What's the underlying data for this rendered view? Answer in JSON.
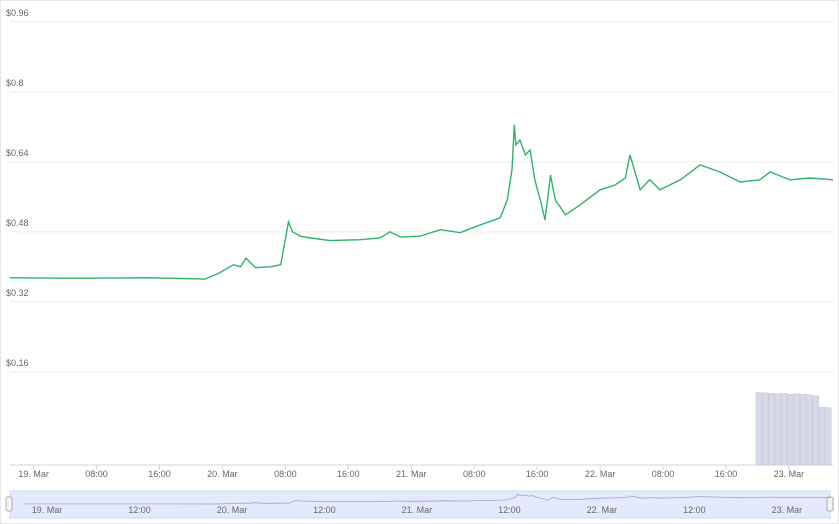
{
  "chart_data": {
    "type": "line",
    "series": [
      {
        "color": "#2fb36a",
        "x": [
          -3,
          5,
          15,
          21.8,
          23.5,
          25.4,
          26.3,
          27,
          28.2,
          30.1,
          31.4,
          32.4,
          32.9,
          33.9,
          35.2,
          37.7,
          41.5,
          44,
          45.3,
          46.6,
          49.1,
          51.7,
          54.2,
          56.8,
          59.3,
          60.2,
          60.8,
          61.1,
          61.3,
          61.8,
          62.5,
          63.1,
          63.7,
          64.4,
          65,
          65.7,
          66.3,
          67.6,
          69.5,
          72,
          73.9,
          75.2,
          75.8,
          77.1,
          78.3,
          79.6,
          82.2,
          84.7,
          87.2,
          89.8,
          92.3,
          93.6,
          96.1,
          98.7,
          101.6
        ],
        "values": [
          0.375,
          0.374,
          0.375,
          0.372,
          0.385,
          0.405,
          0.4,
          0.42,
          0.398,
          0.4,
          0.405,
          0.503,
          0.48,
          0.47,
          0.466,
          0.46,
          0.462,
          0.466,
          0.48,
          0.468,
          0.47,
          0.485,
          0.478,
          0.496,
          0.512,
          0.553,
          0.622,
          0.725,
          0.679,
          0.69,
          0.656,
          0.667,
          0.599,
          0.553,
          0.507,
          0.61,
          0.553,
          0.519,
          0.542,
          0.576,
          0.587,
          0.603,
          0.656,
          0.576,
          0.599,
          0.576,
          0.599,
          0.633,
          0.617,
          0.594,
          0.599,
          0.617,
          0.599,
          0.603,
          0.599
        ]
      },
      {
        "axis": "y2",
        "color": "#d5d9e8",
        "x": [
          92.2,
          93,
          93.8,
          94.6,
          95.4,
          96.2,
          97,
          97.8,
          98.6,
          99.4,
          100.2,
          101
        ],
        "values": [
          15.6,
          15.5,
          15.4,
          15.3,
          15.4,
          15.2,
          15.3,
          15.2,
          15.1,
          14.9,
          12.4,
          12.3
        ]
      }
    ],
    "xlim": [
      -3,
      101.6
    ],
    "xticks": [
      {
        "value": 0,
        "label": "19. Mar"
      },
      {
        "value": 8,
        "label": "08:00"
      },
      {
        "value": 16,
        "label": "16:00"
      },
      {
        "value": 24,
        "label": "20. Mar"
      },
      {
        "value": 32,
        "label": "08:00"
      },
      {
        "value": 40,
        "label": "16:00"
      },
      {
        "value": 48,
        "label": "21. Mar"
      },
      {
        "value": 56,
        "label": "08:00"
      },
      {
        "value": 64,
        "label": "16:00"
      },
      {
        "value": 72,
        "label": "22. Mar"
      },
      {
        "value": 80,
        "label": "08:00"
      },
      {
        "value": 88,
        "label": "16:00"
      },
      {
        "value": 96,
        "label": "23. Mar"
      }
    ],
    "ylim": [
      -0.053,
      1.01
    ],
    "yticks": [
      {
        "value": 0.16,
        "label": "$0.16"
      },
      {
        "value": 0.32,
        "label": "$0.32"
      },
      {
        "value": 0.48,
        "label": "$0.48"
      },
      {
        "value": 0.64,
        "label": "$0.64"
      },
      {
        "value": 0.8,
        "label": "$0.8"
      },
      {
        "value": 0.96,
        "label": "$0.96"
      }
    ],
    "y2lim": [
      0,
      100
    ],
    "grid": true,
    "navigator": {
      "xlim": [
        -4.8,
        101.6
      ],
      "xticks": [
        {
          "value": 0,
          "label": "19. Mar"
        },
        {
          "value": 12,
          "label": "12:00"
        },
        {
          "value": 24,
          "label": "20. Mar"
        },
        {
          "value": 36,
          "label": "12:00"
        },
        {
          "value": 48,
          "label": "21. Mar"
        },
        {
          "value": 60,
          "label": "12:00"
        },
        {
          "value": 72,
          "label": "22. Mar"
        },
        {
          "value": 84,
          "label": "12:00"
        },
        {
          "value": 96,
          "label": "23. Mar"
        }
      ]
    }
  }
}
